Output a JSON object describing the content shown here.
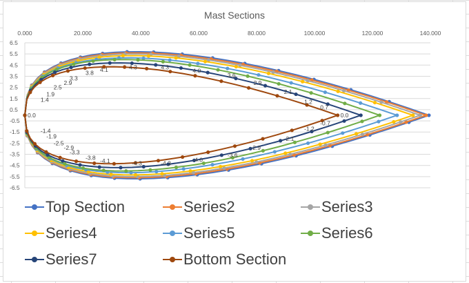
{
  "chart_data": {
    "type": "line",
    "title": "Mast Sections",
    "xlabel": "",
    "ylabel": "",
    "xlim": [
      0,
      140
    ],
    "ylim": [
      -6.5,
      6.5
    ],
    "x_ticks": [
      "0.000",
      "20.000",
      "40.000",
      "60.000",
      "80.000",
      "100.000",
      "120.000",
      "140.000"
    ],
    "y_ticks": [
      "6.5",
      "5.5",
      "4.5",
      "3.5",
      "2.5",
      "1.5",
      "0.5",
      "-0.5",
      "-1.5",
      "-2.5",
      "-3.5",
      "-4.5",
      "-5.5",
      "-6.5"
    ],
    "grid": true,
    "legend_position": "bottom",
    "series": [
      {
        "name": "Top Section",
        "color": "#4472C4",
        "half_thickness": 5.7,
        "chord": 139.5
      },
      {
        "name": "Series2",
        "color": "#ED7D31",
        "half_thickness": 5.6,
        "chord": 138.5
      },
      {
        "name": "Series3",
        "color": "#A5A5A5",
        "half_thickness": 5.5,
        "chord": 136.5
      },
      {
        "name": "Series4",
        "color": "#FFC000",
        "half_thickness": 5.35,
        "chord": 134.0
      },
      {
        "name": "Series5",
        "color": "#5B9BD5",
        "half_thickness": 5.15,
        "chord": 128.5
      },
      {
        "name": "Series6",
        "color": "#70AD47",
        "half_thickness": 5.0,
        "chord": 122.5
      },
      {
        "name": "Series7",
        "color": "#264478",
        "half_thickness": 4.7,
        "chord": 116.0
      },
      {
        "name": "Bottom Section",
        "color": "#9E480E",
        "half_thickness": 4.35,
        "chord": 108.0
      }
    ],
    "data_labels": {
      "series": "Bottom Section",
      "upper": [
        {
          "x": 4.5,
          "y": 1.4,
          "label": "1.4"
        },
        {
          "x": 6.5,
          "y": 1.9,
          "label": "1.9"
        },
        {
          "x": 9.0,
          "y": 2.5,
          "label": "2.5"
        },
        {
          "x": 12.5,
          "y": 2.9,
          "label": "2.9"
        },
        {
          "x": 14.5,
          "y": 3.3,
          "label": "3.3"
        },
        {
          "x": 20.0,
          "y": 3.8,
          "label": "3.8"
        },
        {
          "x": 25.0,
          "y": 4.1,
          "label": "4.1"
        },
        {
          "x": 35.0,
          "y": 4.3,
          "label": "4.3"
        },
        {
          "x": 46.0,
          "y": 4.3,
          "label": "4.3"
        },
        {
          "x": 57.0,
          "y": 4.0,
          "label": "4.0"
        },
        {
          "x": 69.0,
          "y": 3.6,
          "label": "3.6"
        },
        {
          "x": 78.0,
          "y": 2.9,
          "label": "2.9"
        },
        {
          "x": 88.5,
          "y": 2.1,
          "label": "2.1"
        },
        {
          "x": 95.5,
          "y": 1.2,
          "label": "1.2"
        },
        {
          "x": 101.0,
          "y": 0.7,
          "label": "0.7"
        },
        {
          "x": 108.0,
          "y": 0.0,
          "label": "0.0"
        }
      ],
      "origin": {
        "x": 0.0,
        "y": 0.0,
        "label": "0.0"
      },
      "lower": [
        {
          "x": 4.5,
          "y": -1.4,
          "label": "-1.4"
        },
        {
          "x": 6.5,
          "y": -1.9,
          "label": "-1.9"
        },
        {
          "x": 9.0,
          "y": -2.5,
          "label": "-2.5"
        },
        {
          "x": 12.5,
          "y": -2.9,
          "label": "-2.9"
        },
        {
          "x": 14.5,
          "y": -3.3,
          "label": "-3.3"
        },
        {
          "x": 20.0,
          "y": -3.8,
          "label": "-3.8"
        },
        {
          "x": 25.0,
          "y": -4.1,
          "label": "-4.1"
        },
        {
          "x": 36.0,
          "y": -4.3,
          "label": "-4.3"
        },
        {
          "x": 46.0,
          "y": -4.3,
          "label": "-4.3"
        },
        {
          "x": 57.0,
          "y": -4.0,
          "label": "-4.0"
        },
        {
          "x": 69.0,
          "y": -3.6,
          "label": "-3.6"
        },
        {
          "x": 77.0,
          "y": -2.9,
          "label": "-2.9"
        },
        {
          "x": 88.5,
          "y": -2.1,
          "label": "-2.1"
        },
        {
          "x": 95.5,
          "y": -1.2,
          "label": "-1.2"
        },
        {
          "x": 101.0,
          "y": -0.7,
          "label": "-0.7"
        }
      ]
    }
  }
}
